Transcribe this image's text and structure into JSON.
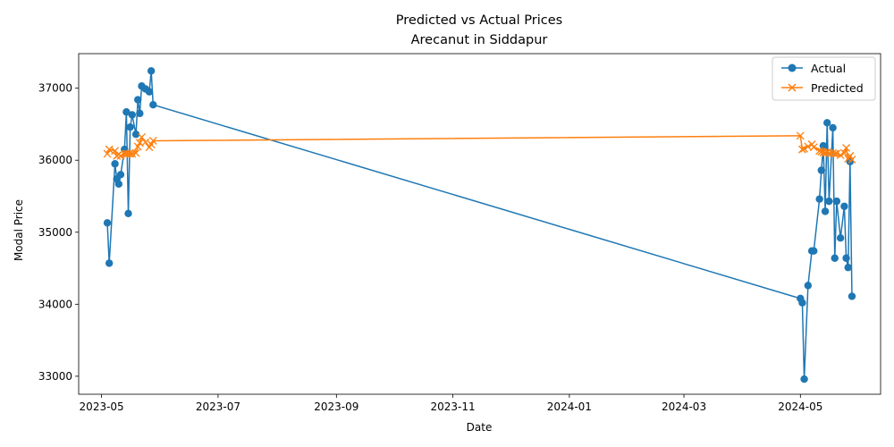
{
  "chart_data": {
    "type": "line",
    "title": "Predicted vs Actual Prices",
    "subtitle": "Arecanut in Siddapur",
    "xlabel": "Date",
    "ylabel": "Modal Price",
    "x_ticks": [
      {
        "date": "2023-05-01",
        "label": "2023-05"
      },
      {
        "date": "2023-07-01",
        "label": "2023-07"
      },
      {
        "date": "2023-09-01",
        "label": "2023-09"
      },
      {
        "date": "2023-11-01",
        "label": "2023-11"
      },
      {
        "date": "2024-01-01",
        "label": "2024-01"
      },
      {
        "date": "2024-03-01",
        "label": "2024-03"
      },
      {
        "date": "2024-05-01",
        "label": "2024-05"
      }
    ],
    "xlim": [
      "2023-04-19",
      "2024-06-12"
    ],
    "ylim": [
      32750,
      37480
    ],
    "y_ticks": [
      33000,
      34000,
      35000,
      36000,
      37000
    ],
    "y_tick_labels": [
      "33000",
      "34000",
      "35000",
      "36000",
      "37000"
    ],
    "legend_position": "top-right",
    "colors": {
      "actual": "#1f77b4",
      "predicted": "#ff7f0e"
    },
    "series": [
      {
        "name": "Actual",
        "marker": "circle",
        "points": [
          [
            "2023-05-04",
            35130
          ],
          [
            "2023-05-05",
            34570
          ],
          [
            "2023-05-08",
            35950
          ],
          [
            "2023-05-09",
            35740
          ],
          [
            "2023-05-10",
            35670
          ],
          [
            "2023-05-11",
            35800
          ],
          [
            "2023-05-13",
            36150
          ],
          [
            "2023-05-14",
            36670
          ],
          [
            "2023-05-15",
            35260
          ],
          [
            "2023-05-16",
            36460
          ],
          [
            "2023-05-17",
            36630
          ],
          [
            "2023-05-19",
            36360
          ],
          [
            "2023-05-20",
            36840
          ],
          [
            "2023-05-21",
            36650
          ],
          [
            "2023-05-22",
            37030
          ],
          [
            "2023-05-24",
            36990
          ],
          [
            "2023-05-26",
            36950
          ],
          [
            "2023-05-27",
            37240
          ],
          [
            "2023-05-28",
            36770
          ],
          [
            "2024-05-01",
            34080
          ],
          [
            "2024-05-02",
            34020
          ],
          [
            "2024-05-03",
            32960
          ],
          [
            "2024-05-05",
            34260
          ],
          [
            "2024-05-07",
            34740
          ],
          [
            "2024-05-08",
            34740
          ],
          [
            "2024-05-11",
            35460
          ],
          [
            "2024-05-12",
            35860
          ],
          [
            "2024-05-13",
            36200
          ],
          [
            "2024-05-14",
            35290
          ],
          [
            "2024-05-15",
            36520
          ],
          [
            "2024-05-16",
            35430
          ],
          [
            "2024-05-18",
            36450
          ],
          [
            "2024-05-19",
            34640
          ],
          [
            "2024-05-20",
            35430
          ],
          [
            "2024-05-22",
            34920
          ],
          [
            "2024-05-24",
            35360
          ],
          [
            "2024-05-25",
            34640
          ],
          [
            "2024-05-26",
            34510
          ],
          [
            "2024-05-27",
            35980
          ],
          [
            "2024-05-28",
            34110
          ]
        ]
      },
      {
        "name": "Predicted",
        "marker": "x",
        "points": [
          [
            "2023-05-04",
            36090
          ],
          [
            "2023-05-05",
            36150
          ],
          [
            "2023-05-08",
            36130
          ],
          [
            "2023-05-09",
            36060
          ],
          [
            "2023-05-10",
            36080
          ],
          [
            "2023-05-11",
            36060
          ],
          [
            "2023-05-13",
            36090
          ],
          [
            "2023-05-14",
            36090
          ],
          [
            "2023-05-15",
            36090
          ],
          [
            "2023-05-16",
            36090
          ],
          [
            "2023-05-17",
            36090
          ],
          [
            "2023-05-19",
            36100
          ],
          [
            "2023-05-20",
            36190
          ],
          [
            "2023-05-21",
            36240
          ],
          [
            "2023-05-22",
            36320
          ],
          [
            "2023-05-24",
            36250
          ],
          [
            "2023-05-26",
            36180
          ],
          [
            "2023-05-27",
            36220
          ],
          [
            "2023-05-28",
            36270
          ],
          [
            "2024-05-01",
            36340
          ],
          [
            "2024-05-02",
            36150
          ],
          [
            "2024-05-03",
            36160
          ],
          [
            "2024-05-05",
            36190
          ],
          [
            "2024-05-07",
            36220
          ],
          [
            "2024-05-08",
            36180
          ],
          [
            "2024-05-11",
            36130
          ],
          [
            "2024-05-12",
            36120
          ],
          [
            "2024-05-13",
            36110
          ],
          [
            "2024-05-14",
            36100
          ],
          [
            "2024-05-15",
            36110
          ],
          [
            "2024-05-16",
            36100
          ],
          [
            "2024-05-18",
            36100
          ],
          [
            "2024-05-19",
            36090
          ],
          [
            "2024-05-20",
            36090
          ],
          [
            "2024-05-22",
            36070
          ],
          [
            "2024-05-24",
            36100
          ],
          [
            "2024-05-25",
            36170
          ],
          [
            "2024-05-26",
            36020
          ],
          [
            "2024-05-27",
            36060
          ],
          [
            "2024-05-28",
            36010
          ]
        ]
      }
    ]
  }
}
